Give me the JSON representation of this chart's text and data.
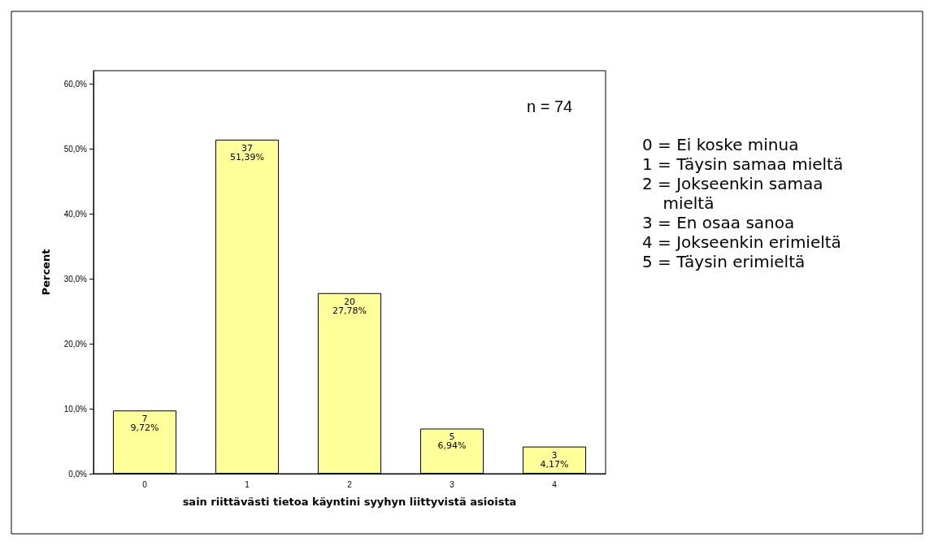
{
  "chart_data": {
    "type": "bar",
    "xlabel": "sain riittävästi tietoa käyntini syyhyn liittyvistä asioista",
    "ylabel": "Percent",
    "categories": [
      "0",
      "1",
      "2",
      "3",
      "4"
    ],
    "values": [
      9.72,
      51.39,
      27.78,
      6.94,
      4.17
    ],
    "value_labels": [
      "7\n9,72%",
      "37\n51,39%",
      "20\n27,78%",
      "5\n6,94%",
      "3\n4,17%"
    ],
    "color": "#ffff99",
    "ylim": [
      0,
      62
    ],
    "yticks": [
      {
        "value": 0,
        "label": "0,0%"
      },
      {
        "value": 10,
        "label": "10,0%"
      },
      {
        "value": 20,
        "label": "20,0%"
      },
      {
        "value": 30,
        "label": "30,0%"
      },
      {
        "value": 40,
        "label": "40,0%"
      },
      {
        "value": 50,
        "label": "50,0%"
      },
      {
        "value": 60,
        "label": "60,0%"
      }
    ],
    "grid": false,
    "annotations": [
      "n = 74",
      "0 = Ei koske minua",
      "1 = Täysin samaa mieltä",
      "2 = Jokseenkin samaa\n    mieltä",
      "3 = En osaa sanoa",
      "4 = Jokseenkin erimieltä",
      "5 = Täysin erimieltä"
    ]
  }
}
